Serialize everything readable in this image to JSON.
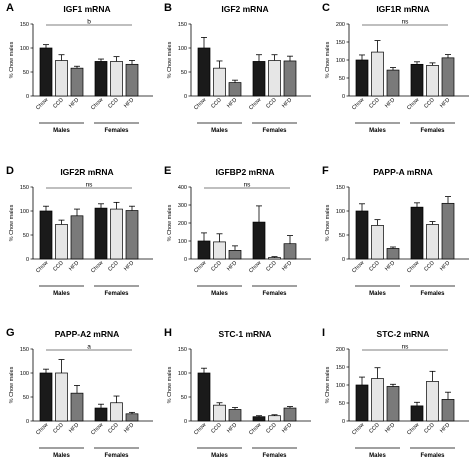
{
  "colors": {
    "chow": "#1a1a1a",
    "ccd": "#e6e6e6",
    "hfd": "#7a7a7a",
    "axis": "#000000"
  },
  "chart_data": [
    {
      "letter": "A",
      "title": "IGF1 mRNA",
      "type": "bar",
      "categories": [
        "Chow",
        "CCD",
        "HFD",
        "Chow",
        "CCD",
        "HFD"
      ],
      "groups": [
        "Males",
        "Females"
      ],
      "values": [
        100,
        74,
        58,
        72,
        72,
        66
      ],
      "errors": [
        7,
        12,
        4,
        5,
        10,
        8
      ],
      "ylabel": "% Chow males",
      "ylim": [
        0,
        150
      ],
      "yticks": [
        0,
        50,
        100,
        150
      ],
      "sig_label": "b"
    },
    {
      "letter": "B",
      "title": "IGF2 mRNA",
      "type": "bar",
      "categories": [
        "Chow",
        "CCD",
        "HFD",
        "Chow",
        "CCD",
        "HFD"
      ],
      "groups": [
        "Males",
        "Females"
      ],
      "values": [
        100,
        58,
        28,
        72,
        74,
        73
      ],
      "errors": [
        22,
        15,
        5,
        14,
        12,
        10
      ],
      "ylabel": "% Chow males",
      "ylim": [
        0,
        150
      ],
      "yticks": [
        0,
        50,
        100,
        150
      ],
      "sig_label": ""
    },
    {
      "letter": "C",
      "title": "IGF1R mRNA",
      "type": "bar",
      "categories": [
        "Chow",
        "CCD",
        "HFD",
        "Chow",
        "CCD",
        "HFD"
      ],
      "groups": [
        "Males",
        "Females"
      ],
      "values": [
        100,
        122,
        72,
        88,
        85,
        106
      ],
      "errors": [
        14,
        32,
        7,
        7,
        7,
        9
      ],
      "ylabel": "% Chow males",
      "ylim": [
        0,
        200
      ],
      "yticks": [
        0,
        50,
        100,
        150,
        200
      ],
      "sig_label": "ns"
    },
    {
      "letter": "D",
      "title": "IGF2R mRNA",
      "type": "bar",
      "categories": [
        "Chow",
        "CCD",
        "HFD",
        "Chow",
        "CCD",
        "HFD"
      ],
      "groups": [
        "Males",
        "Females"
      ],
      "values": [
        100,
        72,
        90,
        106,
        104,
        101
      ],
      "errors": [
        10,
        9,
        14,
        9,
        14,
        9
      ],
      "ylabel": "% Chow males",
      "ylim": [
        0,
        150
      ],
      "yticks": [
        0,
        50,
        100,
        150
      ],
      "sig_label": "ns"
    },
    {
      "letter": "E",
      "title": "IGFBP2 mRNA",
      "type": "bar",
      "categories": [
        "Chow",
        "CCD",
        "HFD",
        "Chow",
        "CCD",
        "HFD"
      ],
      "groups": [
        "Males",
        "Females"
      ],
      "values": [
        100,
        95,
        48,
        205,
        8,
        85
      ],
      "errors": [
        45,
        45,
        25,
        90,
        5,
        45
      ],
      "ylabel": "% Chow males",
      "ylim": [
        0,
        400
      ],
      "yticks": [
        0,
        100,
        200,
        300,
        400
      ],
      "sig_label": "ns"
    },
    {
      "letter": "F",
      "title": "PAPP-A mRNA",
      "type": "bar",
      "categories": [
        "Chow",
        "CCD",
        "HFD",
        "Chow",
        "CCD",
        "HFD"
      ],
      "groups": [
        "Males",
        "Females"
      ],
      "values": [
        100,
        70,
        22,
        108,
        72,
        116
      ],
      "errors": [
        15,
        12,
        3,
        9,
        6,
        14
      ],
      "ylabel": "% Chow males",
      "ylim": [
        0,
        150
      ],
      "yticks": [
        0,
        50,
        100,
        150
      ],
      "sig_label": ""
    },
    {
      "letter": "G",
      "title": "PAPP-A2 mRNA",
      "type": "bar",
      "categories": [
        "Chow",
        "CCD",
        "HFD",
        "Chow",
        "CCD",
        "HFD"
      ],
      "groups": [
        "Males",
        "Females"
      ],
      "values": [
        100,
        100,
        58,
        27,
        38,
        15
      ],
      "errors": [
        8,
        28,
        16,
        8,
        14,
        3
      ],
      "ylabel": "% Chow males",
      "ylim": [
        0,
        150
      ],
      "yticks": [
        0,
        50,
        100,
        150
      ],
      "sig_label": "a"
    },
    {
      "letter": "H",
      "title": "STC-1 mRNA",
      "type": "bar",
      "categories": [
        "Chow",
        "CCD",
        "HFD",
        "Chow",
        "CCD",
        "HFD"
      ],
      "groups": [
        "Males",
        "Females"
      ],
      "values": [
        100,
        33,
        24,
        9,
        11,
        27
      ],
      "errors": [
        10,
        5,
        4,
        2,
        2,
        3
      ],
      "ylabel": "% Chow males",
      "ylim": [
        0,
        150
      ],
      "yticks": [
        0,
        50,
        100,
        150
      ],
      "sig_label": ""
    },
    {
      "letter": "I",
      "title": "STC-2 mRNA",
      "type": "bar",
      "categories": [
        "Chow",
        "CCD",
        "HFD",
        "Chow",
        "CCD",
        "HFD"
      ],
      "groups": [
        "Males",
        "Females"
      ],
      "values": [
        100,
        118,
        96,
        42,
        110,
        60
      ],
      "errors": [
        22,
        30,
        6,
        10,
        28,
        20
      ],
      "ylabel": "% Chow males",
      "ylim": [
        0,
        200
      ],
      "yticks": [
        0,
        50,
        100,
        150,
        200
      ],
      "sig_label": "ns"
    }
  ]
}
